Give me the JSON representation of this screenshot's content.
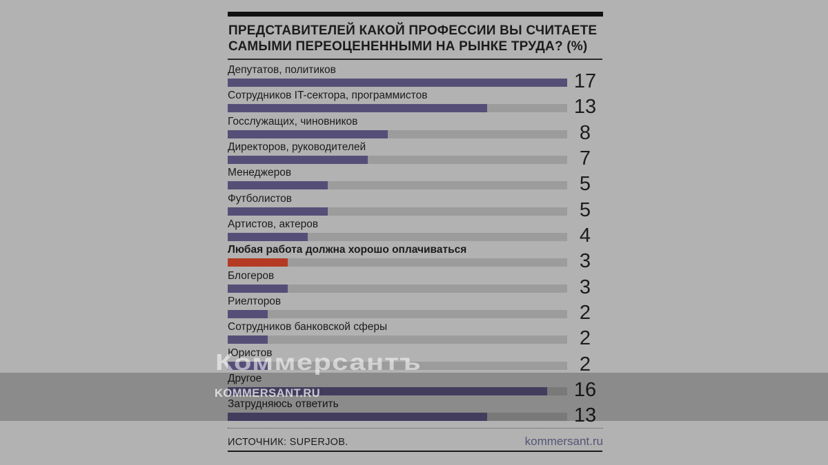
{
  "background": "#b2b2b2",
  "colors": {
    "bar": "#554f78",
    "bar_highlight": "#b43a24",
    "track": "#9c9c9c",
    "text": "#1c1c1c",
    "site_link": "#545576",
    "rule": "#1a1a1a"
  },
  "header": {
    "title_line1": "ПРЕДСТАВИТЕЛЕЙ КАКОЙ ПРОФЕССИИ ВЫ СЧИТАЕТЕ",
    "title_line2": "САМЫМИ ПЕРЕОЦЕНЕННЫМИ НА РЫНКЕ ТРУДА? (%)"
  },
  "rows": [
    {
      "label": "Депутатов, политиков",
      "value": 17,
      "highlight": false
    },
    {
      "label": "Сотрудников IT-сектора, программистов",
      "value": 13,
      "highlight": false
    },
    {
      "label": "Госслужащих, чиновников",
      "value": 8,
      "highlight": false
    },
    {
      "label": "Директоров, руководителей",
      "value": 7,
      "highlight": false
    },
    {
      "label": "Менеджеров",
      "value": 5,
      "highlight": false
    },
    {
      "label": "Футболистов",
      "value": 5,
      "highlight": false
    },
    {
      "label": "Артистов, актеров",
      "value": 4,
      "highlight": false
    },
    {
      "label": "Любая работа должна хорошо оплачиваться",
      "value": 3,
      "highlight": true
    },
    {
      "label": "Блогеров",
      "value": 3,
      "highlight": false
    },
    {
      "label": "Риелторов",
      "value": 2,
      "highlight": false
    },
    {
      "label": "Сотрудников банковской сферы",
      "value": 2,
      "highlight": false
    },
    {
      "label": "Юристов",
      "value": 2,
      "highlight": false
    },
    {
      "label": "Другое",
      "value": 16,
      "highlight": false
    },
    {
      "label": "Затрудняюсь ответить",
      "value": 13,
      "highlight": false
    }
  ],
  "footer": {
    "source": "ИСТОЧНИК: SUPERJOB.",
    "site": "kommersant.ru"
  },
  "watermark": {
    "main": "Коммерсантъ",
    "sub": "KOMMERSANT.RU"
  },
  "chart_data": {
    "type": "bar",
    "orientation": "horizontal",
    "title": "ПРЕДСТАВИТЕЛЕЙ КАКОЙ ПРОФЕССИИ ВЫ СЧИТАЕТЕ САМЫМИ ПЕРЕОЦЕНЕННЫМИ НА РЫНКЕ ТРУДА? (%)",
    "categories": [
      "Депутатов, политиков",
      "Сотрудников IT-сектора, программистов",
      "Госслужащих, чиновников",
      "Директоров, руководителей",
      "Менеджеров",
      "Футболистов",
      "Артистов, актеров",
      "Любая работа должна хорошо оплачиваться",
      "Блогеров",
      "Риелторов",
      "Сотрудников банковской сферы",
      "Юристов",
      "Другое",
      "Затрудняюсь ответить"
    ],
    "values": [
      17,
      13,
      8,
      7,
      5,
      5,
      4,
      3,
      3,
      2,
      2,
      2,
      16,
      13
    ],
    "unit": "%",
    "xlim": [
      0,
      17
    ],
    "grid": false,
    "legend": false,
    "data_labels": "right",
    "highlight_category": "Любая работа должна хорошо оплачиваться",
    "highlight_color": "#b43a24",
    "source": "SUPERJOB"
  }
}
